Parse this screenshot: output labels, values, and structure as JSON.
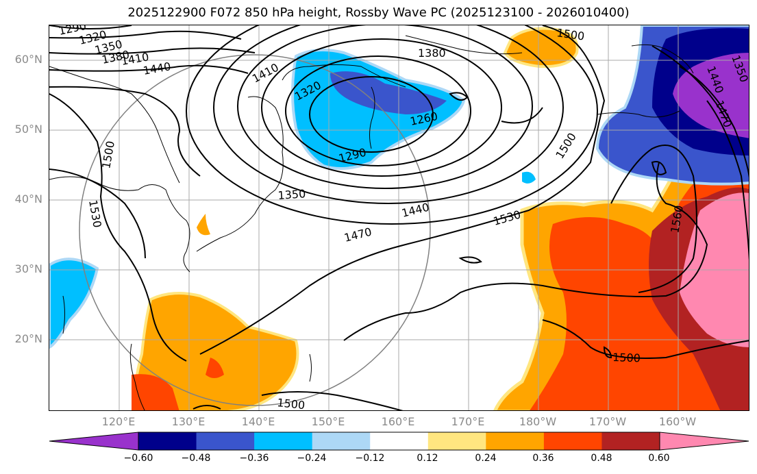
{
  "title": "2025122900 F072 850 hPa height, Rossby Wave PC (2025123100 - 2026010400)",
  "lat_labels": [
    "60°N",
    "50°N",
    "40°N",
    "30°N",
    "20°N"
  ],
  "lon_labels": [
    "120°E",
    "130°E",
    "140°E",
    "150°E",
    "160°E",
    "170°E",
    "180°W",
    "170°W",
    "160°W"
  ],
  "contour_labels": [
    "1290",
    "1320",
    "1350",
    "1380",
    "1410",
    "1440",
    "1410",
    "1320",
    "1380",
    "1500",
    "1260",
    "1290",
    "1350",
    "1440",
    "1470",
    "1530",
    "1500",
    "1500",
    "1530",
    "1560",
    "1500",
    "1500",
    "1440",
    "1470",
    "1350"
  ],
  "colorbar": {
    "ticks": [
      "−0.60",
      "−0.48",
      "−0.36",
      "−0.24",
      "−0.12",
      "0.12",
      "0.24",
      "0.36",
      "0.48",
      "0.60"
    ],
    "colors": [
      "#9932cc",
      "#00008b",
      "#3a55cc",
      "#00bfff",
      "#add8f6",
      "#ffffff",
      "#ffe680",
      "#ffa500",
      "#ff4500",
      "#b22222",
      "#ff88b0"
    ]
  }
}
